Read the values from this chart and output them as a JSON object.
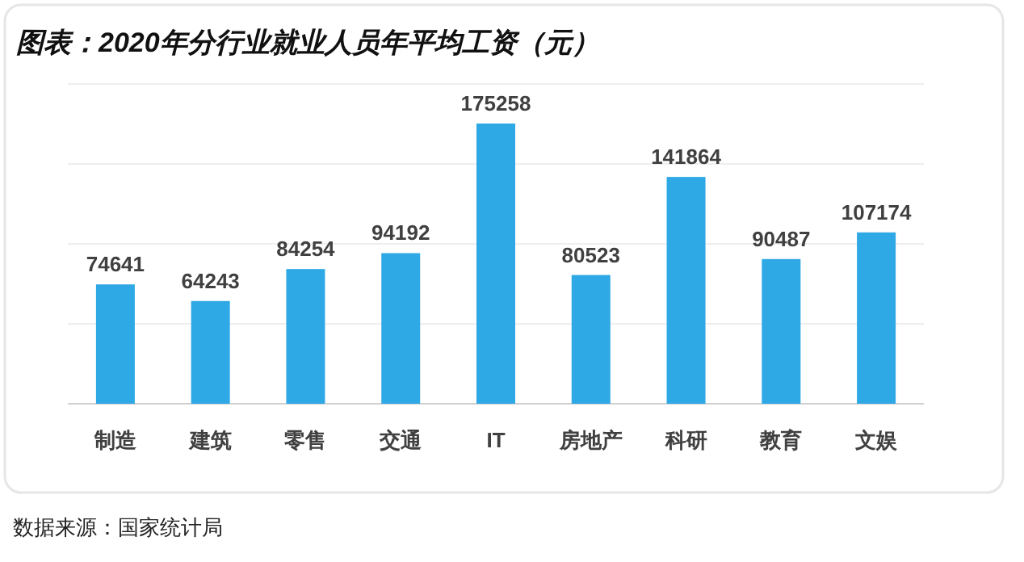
{
  "chart_data": {
    "type": "bar",
    "title": "图表：2020年分行业就业人员年平均工资（元）",
    "categories": [
      "制造",
      "建筑",
      "零售",
      "交通",
      "IT",
      "房地产",
      "科研",
      "教育",
      "文娱"
    ],
    "values": [
      74641,
      64243,
      84254,
      94192,
      175258,
      80523,
      141864,
      90487,
      107174
    ],
    "color": "#2fa8e6",
    "data_labels": true,
    "ylim": [
      0,
      200000
    ],
    "yticks": [
      {
        "value": 0,
        "label": null
      },
      {
        "value": 50000,
        "label": null
      },
      {
        "value": 100000,
        "label": null
      },
      {
        "value": 150000,
        "label": null
      },
      {
        "value": 200000,
        "label": null
      }
    ],
    "grid": "y",
    "annotations": [
      "数据来源：国家统计局"
    ]
  }
}
